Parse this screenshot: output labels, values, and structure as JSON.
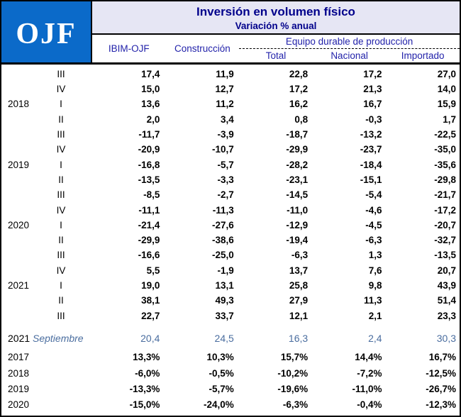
{
  "logo": {
    "text": "OJF"
  },
  "header": {
    "title": "Inversión en volumen físico",
    "subtitle": "Variación % anual",
    "column_headers": [
      "IBIM-OJF",
      "Construcción"
    ],
    "group_label": "Equipo durable de producción",
    "subcolumns": [
      "Total",
      "Nacional",
      "Importado"
    ]
  },
  "colors": {
    "logo_background": "#0B6AC9",
    "title_background": "#E6E6F4",
    "title_text": "#00008B",
    "column_header_text": "#2222AA",
    "monthly_row_text": "#4A6D9F",
    "body_text": "#000000"
  },
  "chart_data": {
    "type": "table",
    "title": "Inversión en volumen físico",
    "subtitle": "Variación % anual",
    "columns": [
      "IBIM-OJF",
      "Construcción",
      "Equipo durable de producción - Total",
      "Equipo durable de producción - Nacional",
      "Equipo durable de producción - Importado"
    ],
    "number_format": "decimal comma, one decimal; annual rows shown as percentages",
    "quarterly": [
      {
        "year": "",
        "period": "III",
        "values": [
          17.4,
          11.9,
          22.8,
          17.2,
          27.0
        ]
      },
      {
        "year": "",
        "period": "IV",
        "values": [
          15.0,
          12.7,
          17.2,
          21.3,
          14.0
        ]
      },
      {
        "year": "2018",
        "period": "I",
        "values": [
          13.6,
          11.2,
          16.2,
          16.7,
          15.9
        ]
      },
      {
        "year": "",
        "period": "II",
        "values": [
          2.0,
          3.4,
          0.8,
          -0.3,
          1.7
        ]
      },
      {
        "year": "",
        "period": "III",
        "values": [
          -11.7,
          -3.9,
          -18.7,
          -13.2,
          -22.5
        ]
      },
      {
        "year": "",
        "period": "IV",
        "values": [
          -20.9,
          -10.7,
          -29.9,
          -23.7,
          -35.0
        ]
      },
      {
        "year": "2019",
        "period": "I",
        "values": [
          -16.8,
          -5.7,
          -28.2,
          -18.4,
          -35.6
        ]
      },
      {
        "year": "",
        "period": "II",
        "values": [
          -13.5,
          -3.3,
          -23.1,
          -15.1,
          -29.8
        ]
      },
      {
        "year": "",
        "period": "III",
        "values": [
          -8.5,
          -2.7,
          -14.5,
          -5.4,
          -21.7
        ]
      },
      {
        "year": "",
        "period": "IV",
        "values": [
          -11.1,
          -11.3,
          -11.0,
          -4.6,
          -17.2
        ]
      },
      {
        "year": "2020",
        "period": "I",
        "values": [
          -21.4,
          -27.6,
          -12.9,
          -4.5,
          -20.7
        ]
      },
      {
        "year": "",
        "period": "II",
        "values": [
          -29.9,
          -38.6,
          -19.4,
          -6.3,
          -32.7
        ]
      },
      {
        "year": "",
        "period": "III",
        "values": [
          -16.6,
          -25.0,
          -6.3,
          1.3,
          -13.5
        ]
      },
      {
        "year": "",
        "period": "IV",
        "values": [
          5.5,
          -1.9,
          13.7,
          7.6,
          20.7
        ]
      },
      {
        "year": "2021",
        "period": "I",
        "values": [
          19.0,
          13.1,
          25.8,
          9.8,
          43.9
        ]
      },
      {
        "year": "",
        "period": "II",
        "values": [
          38.1,
          49.3,
          27.9,
          11.3,
          51.4
        ]
      },
      {
        "year": "",
        "period": "III",
        "values": [
          22.7,
          33.7,
          12.1,
          2.1,
          23.3
        ]
      }
    ],
    "monthly": {
      "year": "2021",
      "period": "Septiembre",
      "values": [
        20.4,
        24.5,
        16.3,
        2.4,
        30.3
      ]
    },
    "annual": [
      {
        "year": "2017",
        "values": [
          13.3,
          10.3,
          15.7,
          14.4,
          16.7
        ]
      },
      {
        "year": "2018",
        "values": [
          -6.0,
          -0.5,
          -10.2,
          -7.2,
          -12.5
        ]
      },
      {
        "year": "2019",
        "values": [
          -13.3,
          -5.7,
          -19.6,
          -11.0,
          -26.7
        ]
      },
      {
        "year": "2020",
        "values": [
          -15.0,
          -24.0,
          -6.3,
          -0.4,
          -12.3
        ]
      }
    ]
  }
}
